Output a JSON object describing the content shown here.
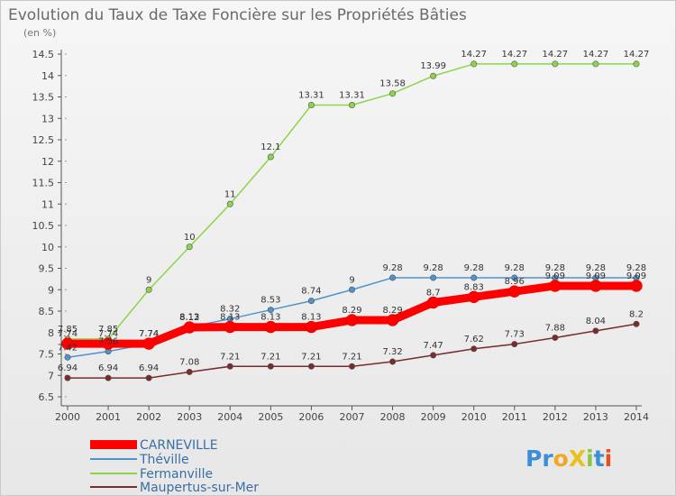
{
  "chart_data": {
    "type": "line",
    "title": "Evolution du Taux de Taxe Foncière sur les Propriétés Bâties",
    "subtitle": "(en %)",
    "x": [
      "2000",
      "2001",
      "2002",
      "2003",
      "2004",
      "2005",
      "2006",
      "2007",
      "2008",
      "2009",
      "2010",
      "2011",
      "2012",
      "2013",
      "2014"
    ],
    "ylim": [
      6.5,
      14.5
    ],
    "yticks": [
      "6.5",
      "7",
      "7.5",
      "8",
      "8.5",
      "9",
      "9.5",
      "10",
      "10.5",
      "11",
      "11.5",
      "12",
      "12.5",
      "13",
      "13.5",
      "14",
      "14.5"
    ],
    "grid": false,
    "legend_position": "bottom-left",
    "series": [
      {
        "name": "CARNEVILLE",
        "color": "#ff0000",
        "values": [
          7.74,
          7.74,
          7.74,
          8.12,
          8.13,
          8.13,
          8.13,
          8.29,
          8.29,
          8.7,
          8.83,
          8.96,
          9.09,
          9.09,
          9.09
        ],
        "labels": [
          "7.74",
          "7.74",
          "7.74",
          "8.12",
          "8.13",
          "8.13",
          "8.13",
          "8.29",
          "8.29",
          "8.7",
          "8.83",
          "8.96",
          "9.09",
          "9.09",
          "9.09"
        ]
      },
      {
        "name": "Théville",
        "color": "#4f93cc",
        "values": [
          7.42,
          7.56,
          7.74,
          8.13,
          8.32,
          8.53,
          8.74,
          9.0,
          9.28,
          9.28,
          9.28,
          9.28,
          9.28,
          9.28,
          9.28
        ],
        "labels": [
          "7.42",
          "7.56",
          "7.74",
          "8.13",
          "8.32",
          "8.53",
          "8.74",
          "9",
          "9.28",
          "9.28",
          "9.28",
          "9.28",
          "9.28",
          "9.28",
          "9.28"
        ]
      },
      {
        "name": "Fermanville",
        "color": "#8fd34b",
        "values": [
          7.85,
          7.85,
          9.0,
          10.0,
          11.0,
          12.1,
          13.31,
          13.31,
          13.58,
          13.99,
          14.27,
          14.27,
          14.27,
          14.27,
          14.27
        ],
        "labels": [
          "7.85",
          "7.85",
          "9",
          "10",
          "11",
          "12.1",
          "13.31",
          "13.31",
          "13.58",
          "13.99",
          "14.27",
          "14.27",
          "14.27",
          "14.27",
          "14.27"
        ]
      },
      {
        "name": "Maupertus-sur-Mer",
        "color": "#7a2b2b",
        "values": [
          6.94,
          6.94,
          6.94,
          7.08,
          7.21,
          7.21,
          7.21,
          7.21,
          7.32,
          7.47,
          7.62,
          7.73,
          7.88,
          8.04,
          8.2
        ],
        "labels": [
          "6.94",
          "6.94",
          "6.94",
          "7.08",
          "7.21",
          "7.21",
          "7.21",
          "7.21",
          "7.32",
          "7.47",
          "7.62",
          "7.73",
          "7.88",
          "8.04",
          "8.2"
        ]
      }
    ]
  },
  "logo": {
    "text": "ProXiti",
    "letters": [
      "P",
      "r",
      "o",
      "X",
      "i",
      "t",
      "i"
    ],
    "colors": [
      "#3a8fd6",
      "#3a8fd6",
      "#f5a623",
      "#e8c21a",
      "#8cc63f",
      "#3a8fd6",
      "#e94e1b"
    ]
  }
}
